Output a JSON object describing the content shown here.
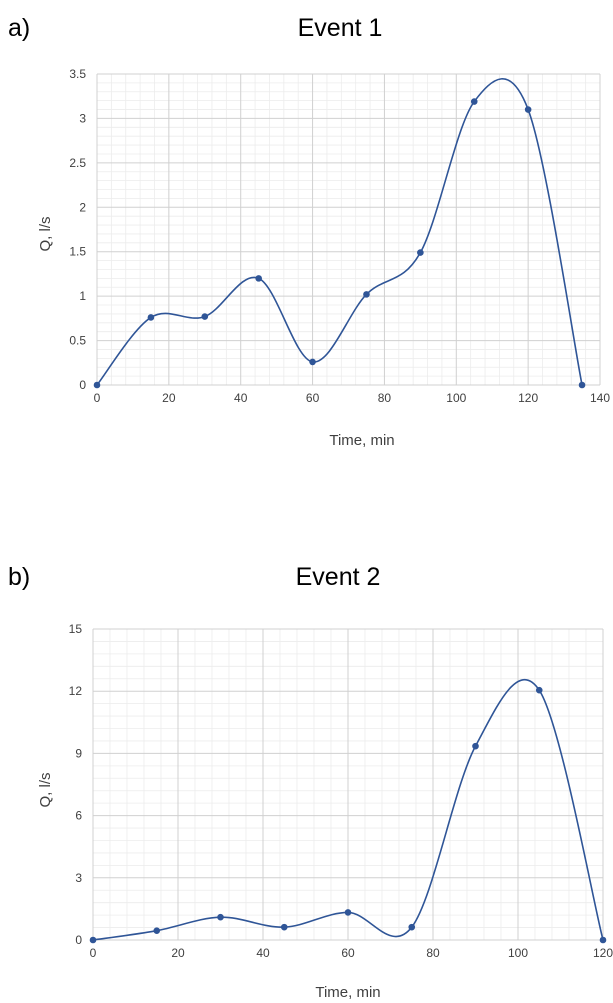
{
  "chart_data": [
    {
      "type": "scatter",
      "panel": "a)",
      "title": "Event 1",
      "xlabel": "Time, min",
      "ylabel": "Q, l/s",
      "xlim": [
        0,
        140
      ],
      "ylim": [
        0,
        3.5
      ],
      "xticks": [
        0,
        20,
        40,
        60,
        80,
        100,
        120,
        140
      ],
      "yticks": [
        0,
        0.5,
        1,
        1.5,
        2,
        2.5,
        3,
        3.5
      ],
      "grid": true,
      "smooth_line": true,
      "series": [
        {
          "x": [
            0,
            15,
            30,
            45,
            60,
            75,
            90,
            105,
            120,
            135
          ],
          "y": [
            0,
            0.76,
            0.77,
            1.2,
            0.26,
            1.02,
            1.49,
            3.19,
            3.1,
            0
          ],
          "color": "#2f5597"
        }
      ]
    },
    {
      "type": "scatter",
      "panel": "b)",
      "title": "Event 2",
      "xlabel": "Time, min",
      "ylabel": "Q, l/s",
      "xlim": [
        0,
        120
      ],
      "ylim": [
        0,
        15
      ],
      "xticks": [
        0,
        20,
        40,
        60,
        80,
        100,
        120
      ],
      "yticks": [
        0,
        3,
        6,
        9,
        12,
        15
      ],
      "grid": true,
      "smooth_line": true,
      "series": [
        {
          "x": [
            0,
            15,
            30,
            45,
            60,
            75,
            90,
            105,
            120
          ],
          "y": [
            0,
            0.45,
            1.1,
            0.62,
            1.33,
            0.62,
            9.35,
            12.05,
            0
          ],
          "color": "#2f5597"
        }
      ]
    }
  ]
}
